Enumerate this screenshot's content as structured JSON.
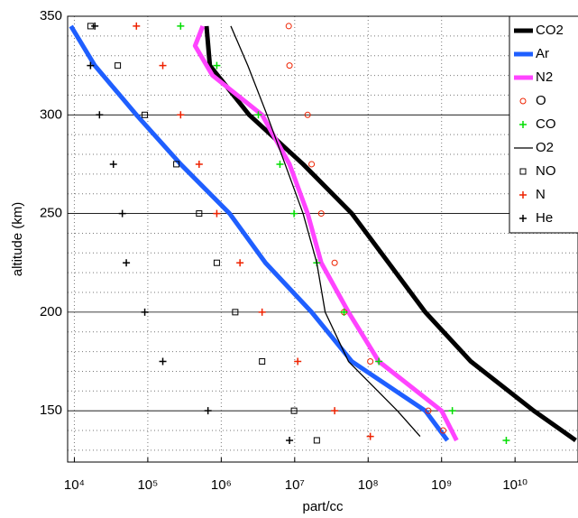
{
  "chart_data": {
    "type": "line",
    "xlabel": "part/cc",
    "ylabel": "altitude (km)",
    "xscale": "log",
    "xlim": [
      8100,
      72000000000
    ],
    "ylim": [
      124,
      350
    ],
    "xticks": [
      {
        "value": 10000,
        "label": "10⁴"
      },
      {
        "value": 100000,
        "label": "10⁵"
      },
      {
        "value": 1000000,
        "label": "10⁶"
      },
      {
        "value": 10000000,
        "label": "10⁷"
      },
      {
        "value": 100000000,
        "label": "10⁸"
      },
      {
        "value": 1000000000,
        "label": "10⁹"
      },
      {
        "value": 10000000000,
        "label": "10¹⁰"
      }
    ],
    "yticks": [
      150,
      200,
      250,
      300,
      350
    ],
    "y_minor_ticks": [
      130,
      140,
      160,
      170,
      180,
      190,
      210,
      220,
      230,
      240,
      260,
      270,
      280,
      290,
      310,
      320,
      330,
      340
    ],
    "grid": true,
    "legend": "upper right",
    "series": [
      {
        "name": "CO2",
        "color": "#000000",
        "marker": "thick-line",
        "x": [
          67000000000,
          18000000000,
          2500000000,
          600000000,
          190000000,
          60000000,
          13000000,
          2400000,
          700000,
          630000
        ],
        "y": [
          135,
          150,
          175,
          200,
          225,
          250,
          275,
          300,
          325,
          345
        ]
      },
      {
        "name": "Ar",
        "color": "#1f5fff",
        "marker": "thick-line",
        "x": [
          1200000000,
          600000000,
          60000000,
          17000000,
          4000000,
          1300000,
          280000,
          70000,
          19000,
          9000
        ],
        "y": [
          135,
          150,
          175,
          200,
          225,
          250,
          275,
          300,
          325,
          345
        ]
      },
      {
        "name": "N2",
        "color": "#ff44ff",
        "marker": "thick-line",
        "x": [
          1600000000,
          1000000000,
          140000000,
          54000000,
          23000000,
          15000000,
          8500000,
          3600000,
          760000,
          440000,
          560000
        ],
        "y": [
          135,
          150,
          175,
          200,
          225,
          250,
          275,
          300,
          320,
          335,
          345
        ]
      },
      {
        "name": "O",
        "color": "#ee2200",
        "marker": "circle",
        "x": [
          1050000000,
          660000000,
          107000000,
          47000000,
          35000000,
          23000000,
          17000000,
          15000000,
          8500000,
          8300000
        ],
        "y": [
          140,
          150,
          175,
          200,
          225,
          250,
          275,
          300,
          325,
          345
        ]
      },
      {
        "name": "CO",
        "color": "#00dd00",
        "marker": "plus",
        "x": [
          7600000000,
          1400000000,
          140000000,
          47000000,
          20000000,
          9800000,
          6300000,
          3200000,
          870000,
          280000
        ],
        "y": [
          135,
          150,
          175,
          200,
          225,
          250,
          275,
          300,
          325,
          345
        ]
      },
      {
        "name": "O2",
        "color": "#000000",
        "marker": "thin-line",
        "x": [
          510000000,
          250000000,
          54000000,
          26000000,
          20000000,
          13000000,
          7400000,
          4200000,
          2300000,
          1350000
        ],
        "y": [
          137,
          150,
          175,
          200,
          225,
          250,
          275,
          300,
          325,
          345
        ]
      },
      {
        "name": "NO",
        "color": "#000000",
        "marker": "square",
        "x": [
          20000000,
          9800000,
          3600000,
          1550000,
          870000,
          500000,
          245000,
          91000,
          39000,
          16600
        ],
        "y": [
          135,
          150,
          175,
          200,
          225,
          250,
          275,
          300,
          325,
          345
        ]
      },
      {
        "name": "N",
        "color": "#ee2200",
        "marker": "plus",
        "x": [
          107000000,
          35000000,
          11000000,
          3600000,
          1800000,
          870000,
          500000,
          280000,
          160000,
          70000
        ],
        "y": [
          137,
          150,
          175,
          200,
          225,
          250,
          275,
          300,
          325,
          345
        ]
      },
      {
        "name": "He",
        "color": "#000000",
        "marker": "plus",
        "x": [
          8500000,
          660000,
          160000,
          91000,
          51000,
          45000,
          34000,
          22000,
          16600,
          19000
        ],
        "y": [
          135,
          150,
          175,
          200,
          225,
          250,
          275,
          300,
          325,
          345
        ]
      }
    ]
  }
}
